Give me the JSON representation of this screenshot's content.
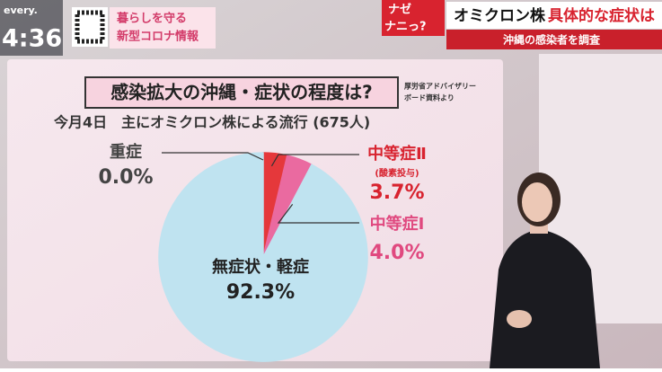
{
  "overlay": {
    "program": "every.",
    "time": "4:36",
    "badge": [
      "暮らしを守る",
      "新型コロナ情報"
    ],
    "corner": [
      "ナゼ",
      "ナニっ?"
    ],
    "headline": [
      "オミクロン株",
      "具体的な症状は"
    ],
    "subheadline": "沖縄の感染者を調査"
  },
  "chart_data": {
    "type": "pie",
    "title": "感染拡大の沖縄・症状の程度は?",
    "source": [
      "厚労省アドバイザリー",
      "ボード資料より"
    ],
    "subtitle": "今月4日　主にオミクロン株による流行 (675人)",
    "categories": [
      "重症",
      "中等症Ⅱ",
      "中等症Ⅰ",
      "無症状・軽症"
    ],
    "values": [
      0.0,
      3.7,
      4.0,
      92.3
    ],
    "value_labels": [
      "0.0%",
      "3.7%",
      "4.0%",
      "92.3%"
    ],
    "colors": [
      "#b0202a",
      "#e5383b",
      "#ea6aa0",
      "#bfe3f0"
    ],
    "annotations": [
      "(酸素投与)"
    ]
  }
}
